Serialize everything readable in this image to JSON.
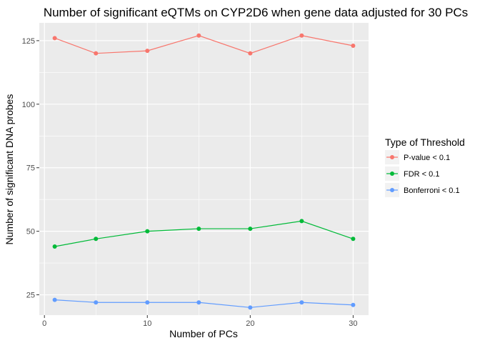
{
  "chart_data": {
    "type": "line",
    "title": "Number of significant eQTMs on CYP2D6 when gene data adjusted for 30 PCs",
    "xlabel": "Number of PCs",
    "ylabel": "Number of significant DNA probes",
    "x": [
      1,
      5,
      10,
      15,
      20,
      25,
      30
    ],
    "xlim": [
      -0.5,
      31.5
    ],
    "ylim": [
      17,
      132
    ],
    "xticks": [
      0,
      10,
      20,
      30
    ],
    "yticks": [
      25,
      50,
      75,
      100,
      125
    ],
    "grid": true,
    "legend": {
      "title": "Type of Threshold",
      "position": "right"
    },
    "series": [
      {
        "name": "P-value < 0.1",
        "color": "#F8766D",
        "values": [
          126,
          120,
          121,
          127,
          120,
          127,
          123
        ]
      },
      {
        "name": "FDR < 0.1",
        "color": "#00BA38",
        "values": [
          44,
          47,
          50,
          51,
          51,
          54,
          47
        ]
      },
      {
        "name": "Bonferroni < 0.1",
        "color": "#619CFF",
        "values": [
          23,
          22,
          22,
          22,
          20,
          22,
          21
        ]
      }
    ]
  }
}
